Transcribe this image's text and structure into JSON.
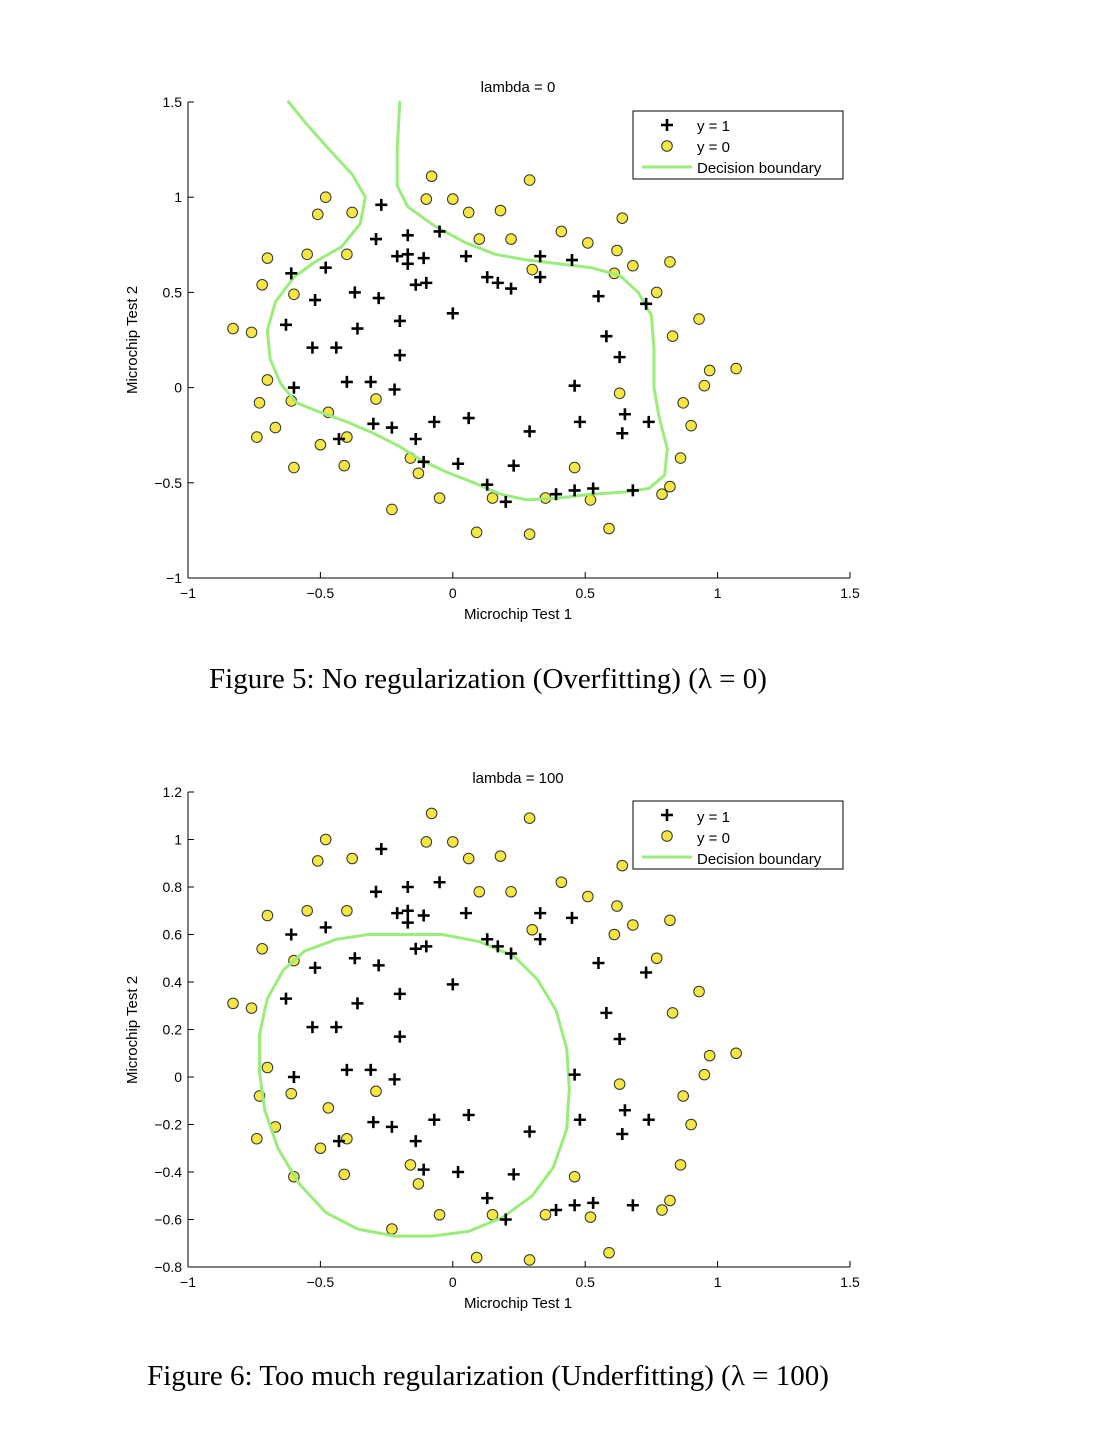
{
  "chart_data": [
    {
      "type": "scatter",
      "title": "lambda = 0",
      "xlabel": "Microchip Test 1",
      "ylabel": "Microchip Test 2",
      "xlim": [
        -1,
        1.5
      ],
      "ylim": [
        -1,
        1.5
      ],
      "xticks": [
        -1,
        -0.5,
        0,
        0.5,
        1,
        1.5
      ],
      "xtick_labels": [
        "−1",
        "−0.5",
        "0",
        "0.5",
        "1",
        "1.5"
      ],
      "yticks": [
        -1,
        -0.5,
        0,
        0.5,
        1,
        1.5
      ],
      "ytick_labels": [
        "−1",
        "−0.5",
        "0",
        "0.5",
        "1",
        "1.5"
      ],
      "legend": [
        "y = 1",
        "y = 0",
        "Decision boundary"
      ],
      "legend_position": "top-right",
      "caption": "Figure 5: No regularization (Overfitting) (λ = 0)",
      "colors": {
        "positive": "#000000",
        "negative_fill": "#f5e642",
        "boundary": "#9aed7a"
      },
      "series": [
        {
          "name": "y = 1",
          "marker": "plus",
          "points": [
            [
              -0.27,
              0.96
            ],
            [
              -0.29,
              0.78
            ],
            [
              -0.17,
              0.8
            ],
            [
              -0.05,
              0.82
            ],
            [
              -0.21,
              0.69
            ],
            [
              -0.17,
              0.7
            ],
            [
              -0.11,
              0.68
            ],
            [
              -0.17,
              0.65
            ],
            [
              0.05,
              0.69
            ],
            [
              0.13,
              0.58
            ],
            [
              0.17,
              0.55
            ],
            [
              0.22,
              0.52
            ],
            [
              -0.14,
              0.54
            ],
            [
              -0.1,
              0.55
            ],
            [
              0.33,
              0.69
            ],
            [
              0.33,
              0.58
            ],
            [
              0.45,
              0.67
            ],
            [
              -0.61,
              0.6
            ],
            [
              -0.48,
              0.63
            ],
            [
              -0.52,
              0.46
            ],
            [
              -0.37,
              0.5
            ],
            [
              -0.28,
              0.47
            ],
            [
              -0.63,
              0.33
            ],
            [
              -0.2,
              0.35
            ],
            [
              -0.36,
              0.31
            ],
            [
              0.0,
              0.39
            ],
            [
              -0.53,
              0.21
            ],
            [
              -0.44,
              0.21
            ],
            [
              -0.2,
              0.17
            ],
            [
              0.55,
              0.48
            ],
            [
              0.58,
              0.27
            ],
            [
              0.63,
              0.16
            ],
            [
              0.73,
              0.44
            ],
            [
              -0.6,
              0.0
            ],
            [
              -0.4,
              0.03
            ],
            [
              -0.31,
              0.03
            ],
            [
              -0.22,
              -0.01
            ],
            [
              0.46,
              0.01
            ],
            [
              -0.3,
              -0.19
            ],
            [
              -0.23,
              -0.21
            ],
            [
              -0.07,
              -0.18
            ],
            [
              0.06,
              -0.16
            ],
            [
              0.29,
              -0.23
            ],
            [
              0.48,
              -0.18
            ],
            [
              0.65,
              -0.14
            ],
            [
              0.64,
              -0.24
            ],
            [
              0.74,
              -0.18
            ],
            [
              -0.43,
              -0.27
            ],
            [
              -0.14,
              -0.27
            ],
            [
              -0.11,
              -0.39
            ],
            [
              0.02,
              -0.4
            ],
            [
              0.23,
              -0.41
            ],
            [
              0.13,
              -0.51
            ],
            [
              0.2,
              -0.6
            ],
            [
              0.39,
              -0.56
            ],
            [
              0.46,
              -0.54
            ],
            [
              0.53,
              -0.53
            ],
            [
              0.68,
              -0.54
            ]
          ]
        },
        {
          "name": "y = 0",
          "marker": "circle",
          "points": [
            [
              -0.08,
              1.11
            ],
            [
              0.29,
              1.09
            ],
            [
              -0.48,
              1.0
            ],
            [
              -0.1,
              0.99
            ],
            [
              0.0,
              0.99
            ],
            [
              -0.51,
              0.91
            ],
            [
              -0.38,
              0.92
            ],
            [
              0.06,
              0.92
            ],
            [
              0.18,
              0.93
            ],
            [
              0.64,
              0.89
            ],
            [
              0.41,
              0.82
            ],
            [
              0.1,
              0.78
            ],
            [
              0.22,
              0.78
            ],
            [
              0.51,
              0.76
            ],
            [
              0.62,
              0.72
            ],
            [
              -0.7,
              0.68
            ],
            [
              -0.55,
              0.7
            ],
            [
              -0.4,
              0.7
            ],
            [
              0.3,
              0.62
            ],
            [
              0.68,
              0.64
            ],
            [
              0.82,
              0.66
            ],
            [
              -0.72,
              0.54
            ],
            [
              -0.6,
              0.49
            ],
            [
              0.61,
              0.6
            ],
            [
              0.77,
              0.5
            ],
            [
              -0.83,
              0.31
            ],
            [
              -0.76,
              0.29
            ],
            [
              0.83,
              0.27
            ],
            [
              0.93,
              0.36
            ],
            [
              -0.7,
              0.04
            ],
            [
              -0.61,
              -0.07
            ],
            [
              -0.73,
              -0.08
            ],
            [
              -0.29,
              -0.06
            ],
            [
              0.63,
              -0.03
            ],
            [
              0.95,
              0.01
            ],
            [
              0.97,
              0.09
            ],
            [
              1.07,
              0.1
            ],
            [
              -0.67,
              -0.21
            ],
            [
              -0.74,
              -0.26
            ],
            [
              -0.47,
              -0.13
            ],
            [
              -0.5,
              -0.3
            ],
            [
              -0.4,
              -0.26
            ],
            [
              0.87,
              -0.08
            ],
            [
              0.9,
              -0.2
            ],
            [
              -0.6,
              -0.42
            ],
            [
              -0.41,
              -0.41
            ],
            [
              -0.16,
              -0.37
            ],
            [
              -0.13,
              -0.45
            ],
            [
              0.46,
              -0.42
            ],
            [
              0.86,
              -0.37
            ],
            [
              -0.23,
              -0.64
            ],
            [
              -0.05,
              -0.58
            ],
            [
              0.15,
              -0.58
            ],
            [
              0.35,
              -0.58
            ],
            [
              0.52,
              -0.59
            ],
            [
              0.79,
              -0.56
            ],
            [
              0.82,
              -0.52
            ],
            [
              0.09,
              -0.76
            ],
            [
              0.29,
              -0.77
            ],
            [
              0.59,
              -0.74
            ]
          ]
        },
        {
          "name": "Decision boundary",
          "type": "line",
          "segments": [
            [
              [
                -0.62,
                1.5
              ],
              [
                -0.55,
                1.38
              ],
              [
                -0.46,
                1.24
              ],
              [
                -0.38,
                1.12
              ],
              [
                -0.33,
                1.0
              ],
              [
                -0.35,
                0.86
              ],
              [
                -0.42,
                0.74
              ],
              [
                -0.52,
                0.66
              ],
              [
                -0.6,
                0.58
              ],
              [
                -0.67,
                0.45
              ],
              [
                -0.7,
                0.3
              ],
              [
                -0.69,
                0.15
              ],
              [
                -0.65,
                0.02
              ],
              [
                -0.59,
                -0.08
              ],
              [
                -0.5,
                -0.13
              ],
              [
                -0.4,
                -0.18
              ],
              [
                -0.3,
                -0.24
              ],
              [
                -0.2,
                -0.31
              ],
              [
                -0.12,
                -0.38
              ],
              [
                -0.03,
                -0.44
              ],
              [
                0.08,
                -0.5
              ],
              [
                0.18,
                -0.56
              ],
              [
                0.28,
                -0.59
              ],
              [
                0.4,
                -0.58
              ],
              [
                0.52,
                -0.56
              ],
              [
                0.64,
                -0.55
              ],
              [
                0.74,
                -0.53
              ],
              [
                0.8,
                -0.46
              ],
              [
                0.81,
                -0.32
              ],
              [
                0.78,
                -0.16
              ],
              [
                0.76,
                0.0
              ],
              [
                0.76,
                0.2
              ],
              [
                0.75,
                0.38
              ],
              [
                0.7,
                0.5
              ],
              [
                0.63,
                0.59
              ],
              [
                0.52,
                0.63
              ],
              [
                0.4,
                0.65
              ],
              [
                0.28,
                0.67
              ],
              [
                0.16,
                0.7
              ],
              [
                0.05,
                0.76
              ],
              [
                -0.07,
                0.85
              ],
              [
                -0.17,
                0.95
              ],
              [
                -0.21,
                1.06
              ],
              [
                -0.21,
                1.25
              ],
              [
                -0.2,
                1.5
              ]
            ]
          ]
        }
      ]
    },
    {
      "type": "scatter",
      "title": "lambda = 100",
      "xlabel": "Microchip Test 1",
      "ylabel": "Microchip Test 2",
      "xlim": [
        -1,
        1.5
      ],
      "ylim": [
        -0.8,
        1.2
      ],
      "xticks": [
        -1,
        -0.5,
        0,
        0.5,
        1,
        1.5
      ],
      "xtick_labels": [
        "−1",
        "−0.5",
        "0",
        "0.5",
        "1",
        "1.5"
      ],
      "yticks": [
        -0.8,
        -0.6,
        -0.4,
        -0.2,
        0,
        0.2,
        0.4,
        0.6,
        0.8,
        1,
        1.2
      ],
      "ytick_labels": [
        "−0.8",
        "−0.6",
        "−0.4",
        "−0.2",
        "0",
        "0.2",
        "0.4",
        "0.6",
        "0.8",
        "1",
        "1.2"
      ],
      "legend": [
        "y = 1",
        "y = 0",
        "Decision boundary"
      ],
      "legend_position": "top-right",
      "caption": "Figure 6: Too much regularization (Underfitting) (λ = 100)",
      "colors": {
        "positive": "#000000",
        "negative_fill": "#f5e642",
        "boundary": "#9aed7a"
      },
      "series": [
        {
          "name": "y = 1",
          "marker": "plus",
          "points": "same as chart 1"
        },
        {
          "name": "y = 0",
          "marker": "circle",
          "points": "same as chart 1"
        },
        {
          "name": "Decision boundary",
          "type": "line",
          "segments": [
            [
              [
                -0.21,
                0.6
              ],
              [
                -0.32,
                0.6
              ],
              [
                -0.44,
                0.58
              ],
              [
                -0.56,
                0.53
              ],
              [
                -0.64,
                0.45
              ],
              [
                -0.7,
                0.33
              ],
              [
                -0.73,
                0.18
              ],
              [
                -0.73,
                0.02
              ],
              [
                -0.71,
                -0.14
              ],
              [
                -0.66,
                -0.3
              ],
              [
                -0.58,
                -0.45
              ],
              [
                -0.48,
                -0.57
              ],
              [
                -0.36,
                -0.64
              ],
              [
                -0.22,
                -0.67
              ],
              [
                -0.08,
                -0.67
              ],
              [
                0.06,
                -0.65
              ],
              [
                0.19,
                -0.59
              ],
              [
                0.3,
                -0.5
              ],
              [
                0.38,
                -0.38
              ],
              [
                0.43,
                -0.22
              ],
              [
                0.44,
                -0.05
              ],
              [
                0.43,
                0.12
              ],
              [
                0.39,
                0.28
              ],
              [
                0.32,
                0.41
              ],
              [
                0.23,
                0.51
              ],
              [
                0.1,
                0.57
              ],
              [
                -0.04,
                0.6
              ],
              [
                -0.21,
                0.6
              ]
            ]
          ]
        }
      ]
    }
  ]
}
